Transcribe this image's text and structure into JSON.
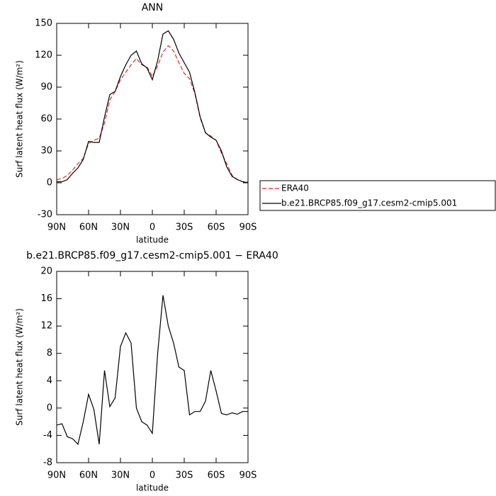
{
  "chart_data": [
    {
      "type": "line",
      "title": "ANN",
      "xlabel": "latitude",
      "ylabel": "Surf latent heat flux (W/m²)",
      "x": [
        90,
        85,
        80,
        75,
        70,
        65,
        60,
        55,
        50,
        45,
        40,
        35,
        30,
        25,
        20,
        15,
        10,
        5,
        0,
        -5,
        -10,
        -15,
        -20,
        -25,
        -30,
        -35,
        -40,
        -45,
        -50,
        -55,
        -60,
        -65,
        -70,
        -75,
        -80,
        -85,
        -90
      ],
      "xlim": [
        90,
        -90
      ],
      "xticks": [
        {
          "value": 90,
          "label": "90N"
        },
        {
          "value": 60,
          "label": "60N"
        },
        {
          "value": 30,
          "label": "30N"
        },
        0,
        {
          "value": -30,
          "label": "30S"
        },
        {
          "value": -60,
          "label": "60S"
        },
        {
          "value": -90,
          "label": "90S"
        }
      ],
      "ylim": [
        -30,
        150
      ],
      "yticks": [
        -30,
        0,
        30,
        60,
        90,
        120,
        150
      ],
      "legend": "right",
      "series": [
        {
          "name": "ERA40",
          "color": "#e8262a",
          "dashed": true,
          "values": [
            3,
            4,
            7,
            12,
            18,
            23,
            37,
            40,
            42,
            56,
            78,
            86,
            97,
            104,
            111,
            117,
            111,
            109,
            100,
            110,
            123,
            129,
            124,
            113,
            103,
            98,
            84,
            61,
            47,
            44,
            40,
            28,
            18,
            7,
            3,
            1,
            1
          ]
        },
        {
          "name": "b.e21.BRCP85.f09_g17.cesm2-cmip5.001",
          "color": "#000000",
          "dashed": false,
          "values": [
            1,
            1,
            3,
            9,
            14,
            22,
            39,
            38,
            38,
            62,
            83,
            86,
            100,
            111,
            120,
            124,
            112,
            108,
            97,
            115,
            140,
            143,
            135,
            122,
            113,
            104,
            85,
            62,
            47,
            43,
            40,
            30,
            15,
            6,
            3,
            1,
            0
          ]
        }
      ]
    },
    {
      "type": "line",
      "title": "b.e21.BRCP85.f09_g17.cesm2-cmip5.001  −  ERA40",
      "xlabel": "latitude",
      "ylabel": "Surf latent heat flux (W/m²)",
      "x": [
        90,
        85,
        80,
        75,
        70,
        65,
        60,
        55,
        50,
        45,
        40,
        35,
        30,
        25,
        20,
        15,
        10,
        5,
        0,
        -5,
        -10,
        -15,
        -20,
        -25,
        -30,
        -35,
        -40,
        -45,
        -50,
        -55,
        -60,
        -65,
        -70,
        -75,
        -80,
        -85,
        -90
      ],
      "xlim": [
        90,
        -90
      ],
      "xticks": [
        {
          "value": 90,
          "label": "90N"
        },
        {
          "value": 60,
          "label": "60N"
        },
        {
          "value": 30,
          "label": "30N"
        },
        0,
        {
          "value": -30,
          "label": "30S"
        },
        {
          "value": -60,
          "label": "60S"
        },
        {
          "value": -90,
          "label": "90S"
        }
      ],
      "ylim": [
        -8,
        20
      ],
      "yticks": [
        -8,
        -4,
        0,
        4,
        8,
        12,
        16,
        20
      ],
      "series": [
        {
          "color": "#000000",
          "dashed": false,
          "values": [
            -2.5,
            -2.3,
            -4.2,
            -4.5,
            -5.3,
            -2,
            2,
            -0.2,
            -5.3,
            5.5,
            0.2,
            1.5,
            9,
            11,
            9.5,
            0,
            -2,
            -2.5,
            -3.7,
            8,
            16.5,
            12,
            9.5,
            6,
            5.5,
            -1,
            -0.5,
            -0.5,
            1,
            5.5,
            2.5,
            -0.8,
            -1,
            -0.7,
            -0.9,
            -0.5,
            -0.5
          ]
        }
      ]
    }
  ]
}
